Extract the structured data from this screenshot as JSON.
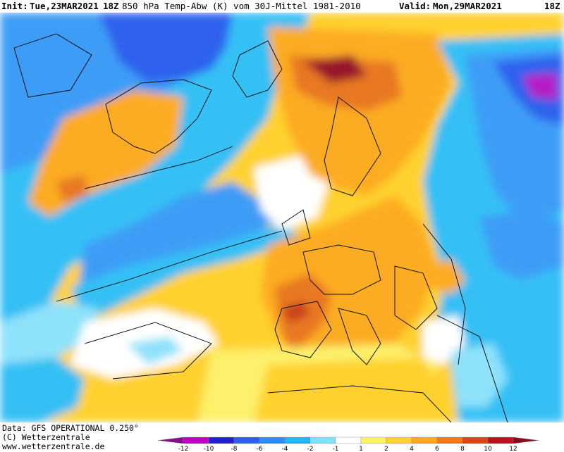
{
  "header": {
    "init_label": "Init:",
    "init_value": "Tue,23MAR2021",
    "init_hour": "18Z",
    "title": "850 hPa Temp-Abw (K) vom 30J-Mittel 1981-2010",
    "valid_label": "Valid:",
    "valid_value": "Mon,29MAR2021",
    "valid_hour": "18Z"
  },
  "footer": {
    "data_source": "Data: GFS OPERATIONAL 0.250°",
    "copyright": "(C) Wetterzentrale",
    "website": "www.wetterzentrale.de"
  },
  "legend": {
    "ticks": [
      "-12",
      "-10",
      "-8",
      "-6",
      "-4",
      "-2",
      "-1",
      "1",
      "2",
      "4",
      "6",
      "8",
      "10",
      "12"
    ],
    "colors": [
      "#8a0a8a",
      "#c000c0",
      "#2020d0",
      "#2c5cf0",
      "#2f8cf7",
      "#25b6f5",
      "#7fe2fa",
      "#ffffff",
      "#fff26a",
      "#ffd22e",
      "#ffa81c",
      "#f07a1a",
      "#d9461a",
      "#b8141c",
      "#8a0b1c"
    ]
  },
  "map_colors": {
    "deep_cold": "#b51ec6",
    "cold": "#2d62ee",
    "cool": "#3c9df6",
    "mild_cool": "#35c0f5",
    "slightly_cool": "#8ee2fa",
    "neutral": "#ffffff",
    "slightly_warm": "#fdf06a",
    "warm": "#ffd12f",
    "warmer": "#fcac24",
    "hot": "#e87820",
    "very_hot": "#c8401c",
    "extreme": "#98182c"
  }
}
